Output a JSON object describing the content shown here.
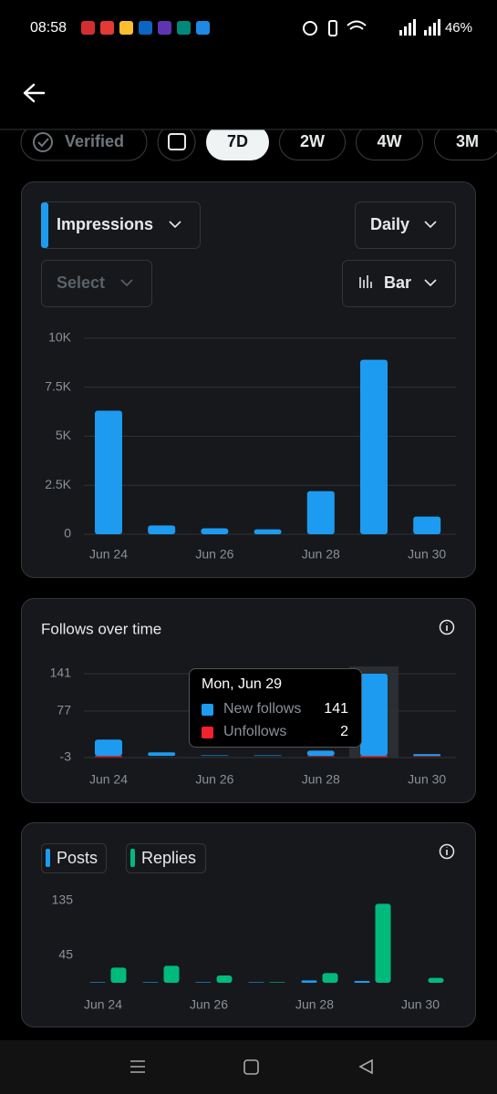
{
  "status_bar": {
    "time": "08:58",
    "battery": "46%"
  },
  "filters": {
    "verified": "Verified",
    "ranges": [
      {
        "label": "7D",
        "selected": true
      },
      {
        "label": "2W"
      },
      {
        "label": "4W"
      },
      {
        "label": "3M"
      }
    ]
  },
  "metric_controls": {
    "metric": "Impressions",
    "interval": "Daily",
    "compare": "Select",
    "chart_style": "Bar"
  },
  "impressions_chart": {
    "type": "bar",
    "categories": [
      "Jun 24",
      null,
      "Jun 26",
      null,
      "Jun 28",
      null,
      "Jun 30"
    ],
    "series": [
      {
        "color": "#1d9bf0",
        "values": [
          6300,
          450,
          300,
          250,
          2200,
          8900,
          900
        ]
      }
    ],
    "ylim": [
      0,
      10000
    ],
    "yticks": [
      0,
      {
        "value": 2500,
        "label": "2.5K"
      },
      {
        "value": 5000,
        "label": "5K"
      },
      {
        "value": 7500,
        "label": "7.5K"
      },
      {
        "value": 10000,
        "label": "10K"
      }
    ],
    "grid": true
  },
  "follows_chart": {
    "type": "bar",
    "title": "Follows over time",
    "categories": [
      "Jun 24",
      null,
      "Jun 26",
      null,
      "Jun 28",
      null,
      "Jun 30"
    ],
    "series": [
      {
        "name": "New follows",
        "color": "#1d9bf0",
        "values": [
          28,
          6,
          1,
          1,
          9,
          141,
          3
        ]
      },
      {
        "name": "Unfollows",
        "color": "#f4212e",
        "values": [
          2,
          0,
          0,
          0,
          1,
          2,
          1
        ]
      }
    ],
    "ylim": [
      -3,
      141
    ],
    "yticks": [
      -3,
      77,
      141
    ],
    "grid": true,
    "tooltip": {
      "title": "Mon, Jun 29",
      "index": 5
    }
  },
  "engagement_chart": {
    "type": "bar",
    "categories": [
      "Jun 24",
      null,
      "Jun 26",
      null,
      "Jun 28",
      null,
      "Jun 30"
    ],
    "series": [
      {
        "name": "Posts",
        "color": "#1d9bf0",
        "values": [
          1,
          1,
          1,
          1,
          4,
          3,
          0
        ]
      },
      {
        "name": "Replies",
        "color": "#00ba7c",
        "values": [
          25,
          28,
          12,
          1,
          16,
          130,
          8
        ]
      }
    ],
    "ylim": [
      0,
      150
    ],
    "yticks": [
      45,
      135
    ],
    "grid": false
  }
}
